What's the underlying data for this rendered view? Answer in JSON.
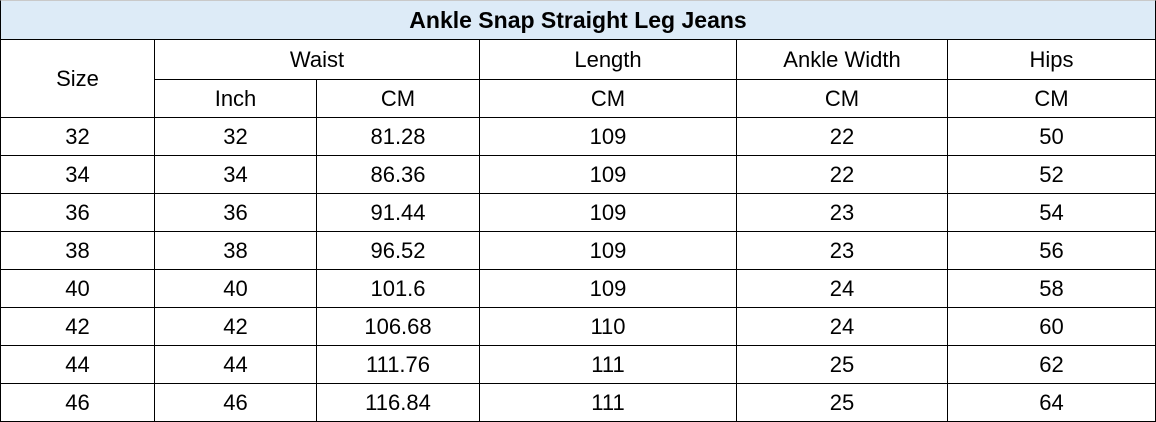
{
  "title": "Ankle Snap Straight Leg Jeans",
  "header": {
    "size": "Size",
    "groups": [
      "Waist",
      "Length",
      "Ankle Width",
      "Hips"
    ],
    "units": [
      "Inch",
      "CM",
      "CM",
      "CM",
      "CM"
    ]
  },
  "rows": [
    [
      32,
      32,
      81.28,
      109,
      22,
      50
    ],
    [
      34,
      34,
      86.36,
      109,
      22,
      52
    ],
    [
      36,
      36,
      91.44,
      109,
      23,
      54
    ],
    [
      38,
      38,
      96.52,
      109,
      23,
      56
    ],
    [
      40,
      40,
      101.6,
      109,
      24,
      58
    ],
    [
      42,
      42,
      106.68,
      110,
      24,
      60
    ],
    [
      44,
      44,
      111.76,
      111,
      25,
      62
    ],
    [
      46,
      46,
      116.84,
      111,
      25,
      64
    ]
  ]
}
